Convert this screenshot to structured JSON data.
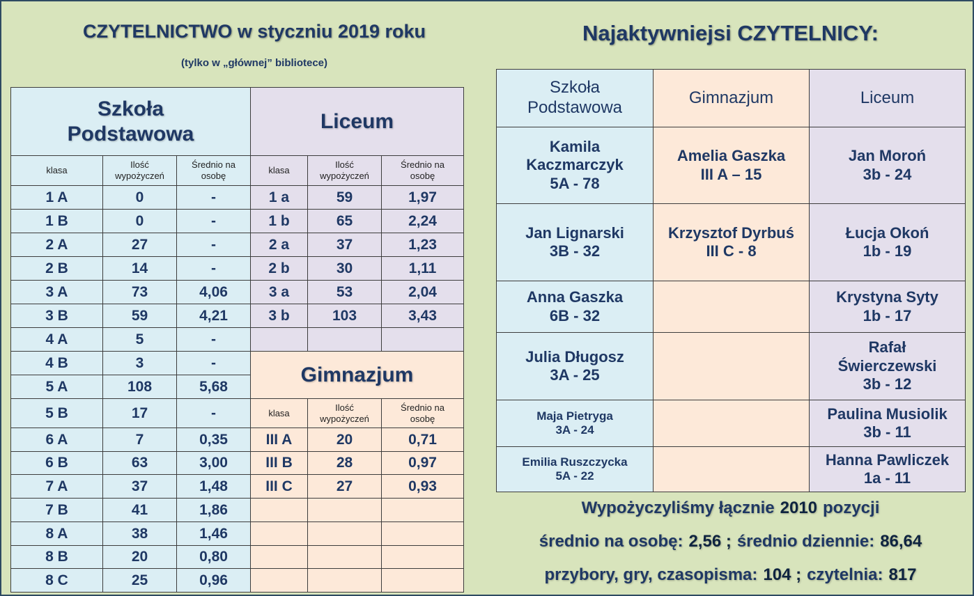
{
  "left": {
    "title": "CZYTELNICTWO w styczniu 2019 roku",
    "subtitle": "(tylko w „głównej” bibliotece)"
  },
  "szkola_podstawowa": {
    "header": "Szkoła Podstawowa",
    "columns": [
      "klasa",
      "Ilość wypożyczeń",
      "Średnio na osobę"
    ],
    "rows": [
      [
        "1 A",
        0,
        "-"
      ],
      [
        "1 B",
        0,
        "-"
      ],
      [
        "2 A",
        27,
        "-"
      ],
      [
        "2 B",
        14,
        "-"
      ],
      [
        "3 A",
        73,
        "4,06"
      ],
      [
        "3 B",
        59,
        "4,21"
      ],
      [
        "4 A",
        5,
        "-"
      ],
      [
        "4 B",
        3,
        "-"
      ],
      [
        "5 A",
        108,
        "5,68"
      ],
      [
        "5 B",
        17,
        "-"
      ],
      [
        "6 A",
        7,
        "0,35"
      ],
      [
        "6 B",
        63,
        "3,00"
      ],
      [
        "7 A",
        37,
        "1,48"
      ],
      [
        "7 B",
        41,
        "1,86"
      ],
      [
        "8 A",
        38,
        "1,46"
      ],
      [
        "8 B",
        20,
        "0,80"
      ],
      [
        "8 C",
        25,
        "0,96"
      ]
    ]
  },
  "liceum": {
    "header": "Liceum",
    "columns": [
      "klasa",
      "Ilość wypożyczeń",
      "Średnio na osobę"
    ],
    "rows": [
      [
        "1 a",
        59,
        "1,97"
      ],
      [
        "1 b",
        65,
        "2,24"
      ],
      [
        "2 a",
        37,
        "1,23"
      ],
      [
        "2 b",
        30,
        "1,11"
      ],
      [
        "3 a",
        53,
        "2,04"
      ],
      [
        "3 b",
        103,
        "3,43"
      ]
    ]
  },
  "gimnazjum": {
    "header": "Gimnazjum",
    "columns": [
      "klasa",
      "Ilość wypożyczeń",
      "Średnio na osobę"
    ],
    "rows": [
      [
        "III A",
        20,
        "0,71"
      ],
      [
        "III B",
        28,
        "0,97"
      ],
      [
        "III C",
        27,
        "0,93"
      ]
    ]
  },
  "right": {
    "title": "Najaktywniejsi CZYTELNICY:",
    "columns": [
      "Szkoła Podstawowa",
      "Gimnazjum",
      "Liceum"
    ],
    "rows": [
      [
        {
          "name": "Kamila Kaczmarczyk",
          "score": "5A - 78"
        },
        {
          "name": "Amelia Gaszka",
          "score": "III A – 15"
        },
        {
          "name": "Jan Moroń",
          "score": "3b - 24"
        }
      ],
      [
        {
          "name": "Jan Lignarski",
          "score": "3B - 32"
        },
        {
          "name": "Krzysztof Dyrbuś",
          "score": "III C - 8"
        },
        {
          "name": "Łucja Okoń",
          "score": "1b - 19"
        }
      ],
      [
        {
          "name": "Anna Gaszka",
          "score": "6B - 32"
        },
        null,
        {
          "name": "Krystyna Syty",
          "score": "1b - 17"
        }
      ],
      [
        {
          "name": "Julia Długosz",
          "score": "3A - 25"
        },
        null,
        {
          "name": "Rafał Świerczewski",
          "score": "3b - 12"
        }
      ],
      [
        {
          "name": "Maja Pietryga",
          "score": "3A - 24"
        },
        null,
        {
          "name": "Paulina Musiolik",
          "score": "3b - 11"
        }
      ],
      [
        {
          "name": "Emilia Ruszczycka",
          "score": "5A - 22"
        },
        null,
        {
          "name": "Hanna Pawliczek",
          "score": "1a - 11"
        }
      ]
    ]
  },
  "summary": [
    [
      "Wypożyczyliśmy łącznie",
      "2010",
      "pozycji"
    ],
    [
      "średnio na osobę:",
      "2,56 ;",
      "średnio dziennie:",
      "86,64"
    ],
    [
      "przybory, gry, czasopisma:",
      "104 ;",
      "czytelnia:",
      "817"
    ]
  ]
}
